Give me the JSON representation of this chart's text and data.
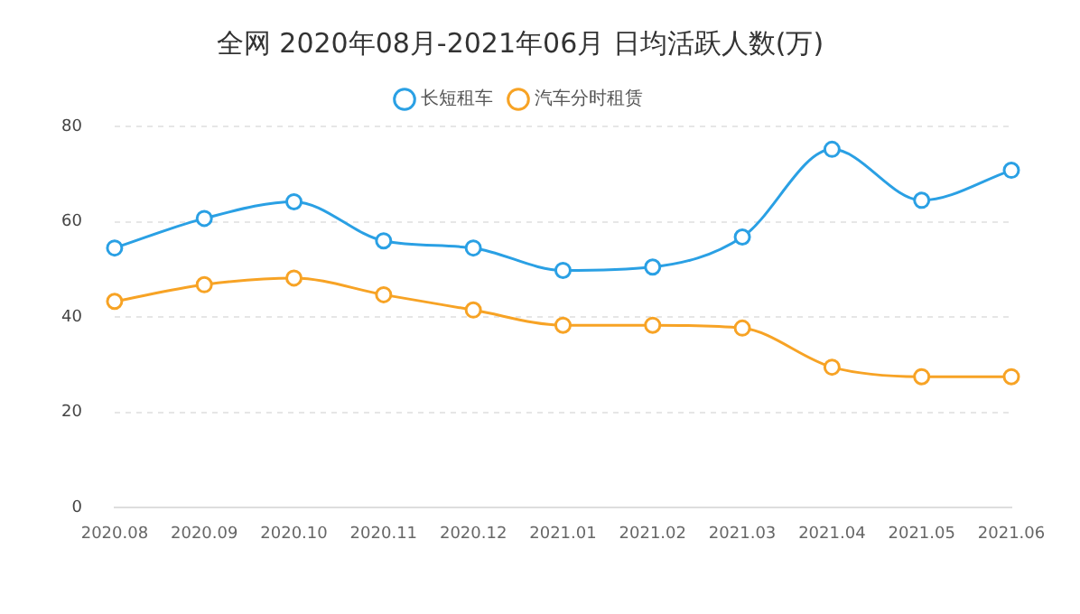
{
  "chart_data": {
    "type": "line",
    "title": "全网 2020年08月-2021年06月 日均活跃人数(万)",
    "categories": [
      "2020.08",
      "2020.09",
      "2020.10",
      "2020.11",
      "2020.12",
      "2021.01",
      "2021.02",
      "2021.03",
      "2021.04",
      "2021.05",
      "2021.06"
    ],
    "series": [
      {
        "name": "长短租车",
        "color": "#2aa0e4",
        "values": [
          54.5,
          60.7,
          64.2,
          56,
          54.5,
          49.8,
          50.5,
          56.8,
          75.2,
          64.5,
          70.8
        ]
      },
      {
        "name": "汽车分时租赁",
        "color": "#f7a325",
        "values": [
          43.3,
          46.8,
          48.2,
          44.7,
          41.5,
          38.3,
          38.3,
          37.7,
          29.5,
          27.5,
          27.5
        ]
      }
    ],
    "ylim": [
      0,
      80
    ],
    "yticks": [
      0,
      20,
      40,
      60,
      80
    ],
    "grid": "y",
    "legend": "top",
    "marker": "circle",
    "line_style": "solid"
  }
}
